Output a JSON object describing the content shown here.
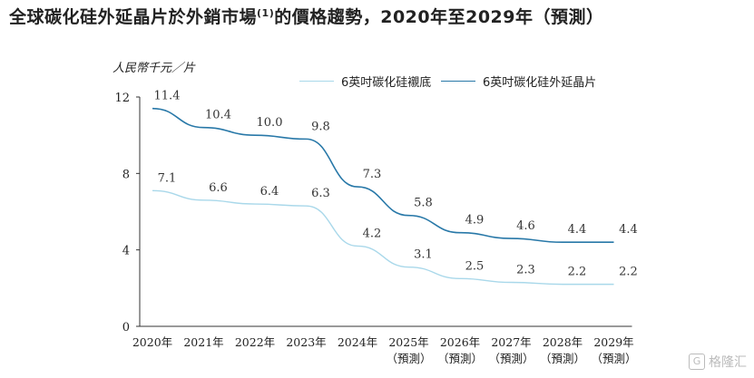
{
  "title": {
    "main": "全球碳化硅外延晶片於外銷市場",
    "note": "(1)",
    "rest": "的價格趨勢，2020年至2029年（預測）"
  },
  "chart_data": {
    "type": "line",
    "unit_label": "人民幣千元／片",
    "categories": [
      "2020年",
      "2021年",
      "2022年",
      "2023年",
      "2024年",
      "2025年",
      "2026年",
      "2027年",
      "2028年",
      "2029年"
    ],
    "category_sublabels": [
      "",
      "",
      "",
      "",
      "",
      "（預測）",
      "（預測）",
      "（預測）",
      "（預測）",
      "（預測）"
    ],
    "yticks": [
      0,
      4,
      8,
      12
    ],
    "ylim": [
      0,
      12
    ],
    "series": [
      {
        "name": "6英吋碳化硅襯底",
        "color": "#a9d8ea",
        "values": [
          7.1,
          6.6,
          6.4,
          6.3,
          4.2,
          3.1,
          2.5,
          2.3,
          2.2,
          2.2
        ]
      },
      {
        "name": "6英吋碳化硅外延晶片",
        "color": "#2878a8",
        "values": [
          11.4,
          10.4,
          10.0,
          9.8,
          7.3,
          5.8,
          4.9,
          4.6,
          4.4,
          4.4
        ]
      }
    ],
    "legend_position": "top"
  },
  "watermark": {
    "text": "格隆汇",
    "glyph": "G"
  }
}
